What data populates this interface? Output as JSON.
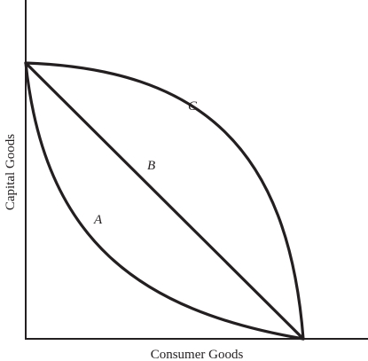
{
  "diagram": {
    "x_axis_label": "Consumer Goods",
    "y_axis_label": "Capital Goods",
    "curves": [
      {
        "id": "A",
        "label": "A",
        "shape": "convex"
      },
      {
        "id": "B",
        "label": "B",
        "shape": "straight"
      },
      {
        "id": "C",
        "label": "C",
        "shape": "concave"
      }
    ],
    "colors": {
      "line": "#231f20",
      "background": "#ffffff"
    }
  }
}
